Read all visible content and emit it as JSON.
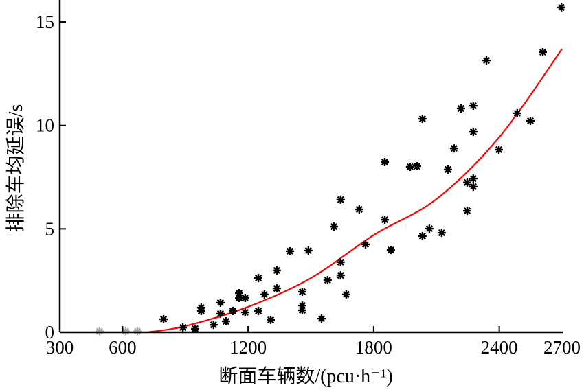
{
  "chart_data": {
    "type": "scatter",
    "xlabel": "断面车辆数/(pcu·h⁻¹)",
    "ylabel": "排除车均延误/s",
    "xlim": [
      300,
      2700
    ],
    "ylim": [
      0,
      15.5
    ],
    "x_ticks": [
      300,
      600,
      1200,
      1800,
      2400,
      2700
    ],
    "y_ticks": [
      0,
      5,
      10,
      15
    ],
    "grid": false,
    "colors": {
      "points": "#000000",
      "fit": "#ff0000"
    },
    "series": [
      {
        "name": "observed",
        "marker": "asterisk",
        "points": [
          [
            490,
            0.05
          ],
          [
            615,
            0.05
          ],
          [
            671,
            0.05
          ],
          [
            796,
            0.63
          ],
          [
            888,
            0.23
          ],
          [
            947,
            0.17
          ],
          [
            976,
            1.19
          ],
          [
            976,
            1.03
          ],
          [
            1035,
            0.36
          ],
          [
            1068,
            1.43
          ],
          [
            1068,
            0.9
          ],
          [
            1094,
            0.53
          ],
          [
            1127,
            1.03
          ],
          [
            1157,
            1.89
          ],
          [
            1157,
            1.66
          ],
          [
            1186,
            1.66
          ],
          [
            1186,
            0.96
          ],
          [
            1249,
            2.62
          ],
          [
            1249,
            1.03
          ],
          [
            1278,
            1.83
          ],
          [
            1308,
            0.6
          ],
          [
            1337,
            2.99
          ],
          [
            1337,
            2.12
          ],
          [
            1400,
            3.92
          ],
          [
            1459,
            1.96
          ],
          [
            1459,
            1.29
          ],
          [
            1459,
            1.06
          ],
          [
            1488,
            3.95
          ],
          [
            1551,
            0.66
          ],
          [
            1580,
            2.52
          ],
          [
            1610,
            5.11
          ],
          [
            1642,
            6.41
          ],
          [
            1642,
            3.39
          ],
          [
            1642,
            2.75
          ],
          [
            1669,
            1.83
          ],
          [
            1731,
            5.94
          ],
          [
            1761,
            4.25
          ],
          [
            1853,
            8.23
          ],
          [
            1853,
            5.44
          ],
          [
            1882,
            3.98
          ],
          [
            1974,
            8.0
          ],
          [
            2007,
            8.03
          ],
          [
            2033,
            10.32
          ],
          [
            2033,
            4.65
          ],
          [
            2066,
            5.01
          ],
          [
            2125,
            4.81
          ],
          [
            2155,
            7.87
          ],
          [
            2184,
            8.89
          ],
          [
            2217,
            10.82
          ],
          [
            2247,
            7.24
          ],
          [
            2247,
            5.87
          ],
          [
            2276,
            10.95
          ],
          [
            2276,
            9.69
          ],
          [
            2276,
            7.43
          ],
          [
            2276,
            7.04
          ],
          [
            2339,
            13.14
          ],
          [
            2398,
            8.83
          ],
          [
            2486,
            10.59
          ],
          [
            2549,
            10.22
          ],
          [
            2608,
            13.54
          ],
          [
            2697,
            15.7
          ]
        ]
      },
      {
        "name": "fit",
        "type": "line",
        "points": [
          [
            720,
            0
          ],
          [
            900,
            0.3
          ],
          [
            1200,
            1.23
          ],
          [
            1500,
            2.62
          ],
          [
            1800,
            4.7
          ],
          [
            2100,
            6.44
          ],
          [
            2400,
            9.43
          ],
          [
            2700,
            13.7
          ]
        ]
      }
    ]
  }
}
